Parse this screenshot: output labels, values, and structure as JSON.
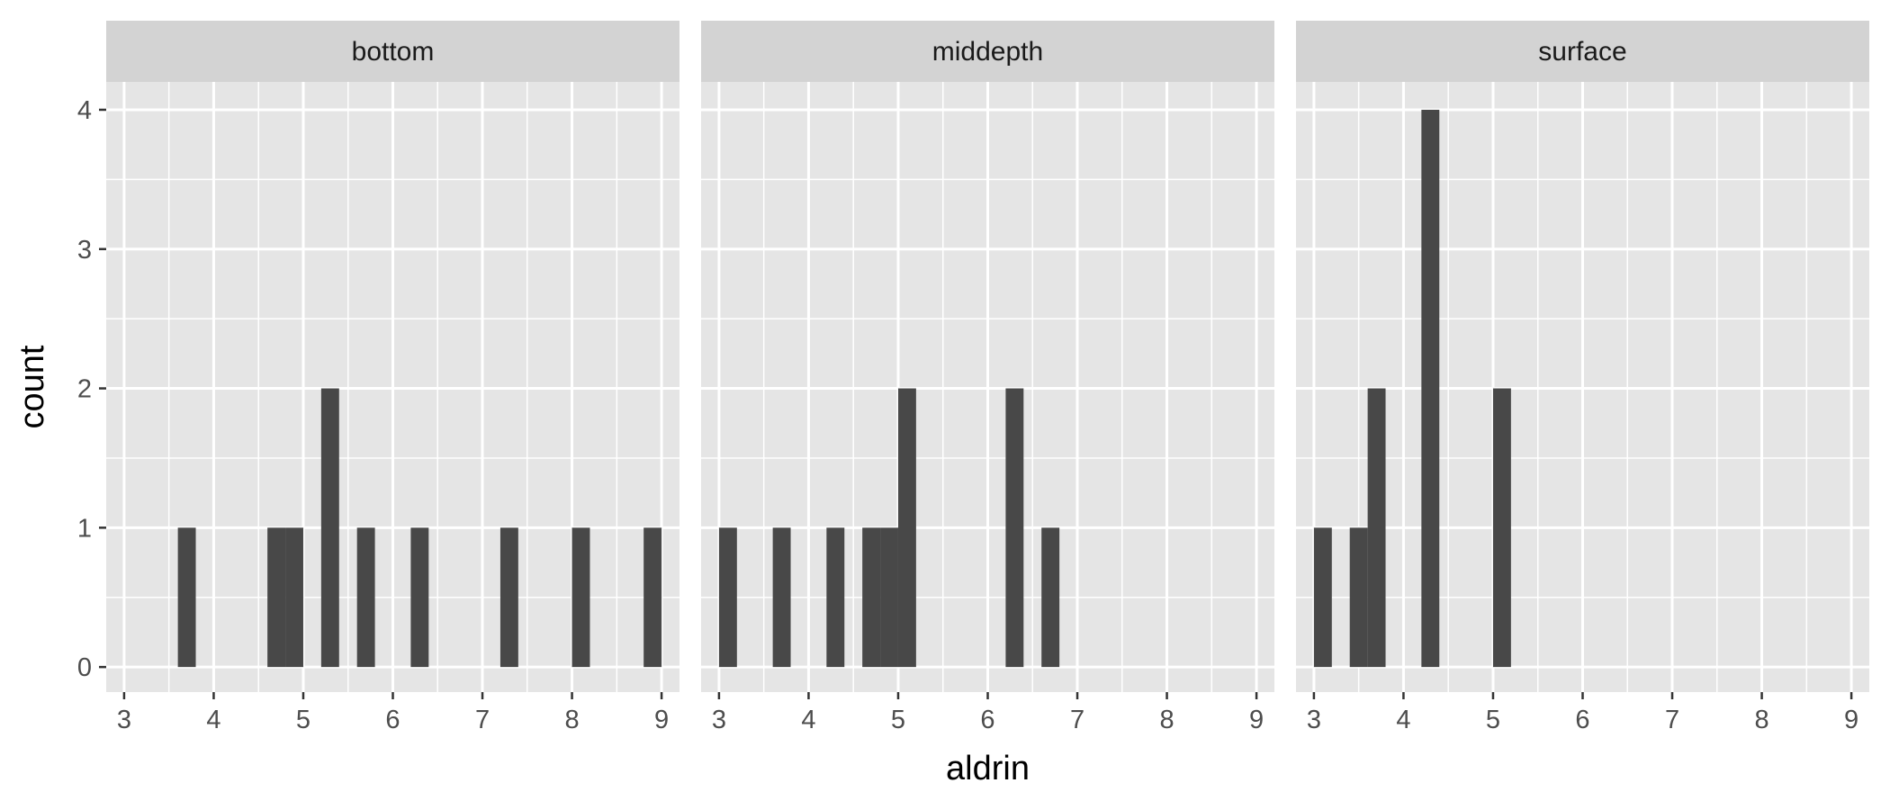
{
  "chart_data": {
    "type": "histogram",
    "facet_variable": "",
    "xlabel": "aldrin",
    "ylabel": "count",
    "title": "",
    "xlim": [
      2.8,
      9.2
    ],
    "ylim": [
      -0.18,
      4.2
    ],
    "x_ticks": [
      3,
      4,
      5,
      6,
      7,
      8,
      9
    ],
    "y_ticks": [
      0,
      1,
      2,
      3,
      4
    ],
    "bin_width": 0.2,
    "grid": true,
    "legend": "none",
    "colors": {
      "bar": "#484848",
      "panel_background": "#e5e5e5",
      "strip_background": "#d3d3d3",
      "grid": "#ffffff"
    },
    "panels": [
      {
        "name": "bottom",
        "bins": [
          {
            "x0": 3.6,
            "x1": 3.8,
            "count": 1
          },
          {
            "x0": 4.6,
            "x1": 4.8,
            "count": 1
          },
          {
            "x0": 4.8,
            "x1": 5.0,
            "count": 1
          },
          {
            "x0": 5.2,
            "x1": 5.4,
            "count": 2
          },
          {
            "x0": 5.6,
            "x1": 5.8,
            "count": 1
          },
          {
            "x0": 6.2,
            "x1": 6.4,
            "count": 1
          },
          {
            "x0": 7.2,
            "x1": 7.4,
            "count": 1
          },
          {
            "x0": 8.0,
            "x1": 8.2,
            "count": 1
          },
          {
            "x0": 8.8,
            "x1": 9.0,
            "count": 1
          }
        ]
      },
      {
        "name": "middepth",
        "bins": [
          {
            "x0": 3.0,
            "x1": 3.2,
            "count": 1
          },
          {
            "x0": 3.6,
            "x1": 3.8,
            "count": 1
          },
          {
            "x0": 4.2,
            "x1": 4.4,
            "count": 1
          },
          {
            "x0": 4.6,
            "x1": 4.8,
            "count": 1
          },
          {
            "x0": 4.8,
            "x1": 5.0,
            "count": 1
          },
          {
            "x0": 5.0,
            "x1": 5.2,
            "count": 2
          },
          {
            "x0": 6.2,
            "x1": 6.4,
            "count": 2
          },
          {
            "x0": 6.6,
            "x1": 6.8,
            "count": 1
          }
        ]
      },
      {
        "name": "surface",
        "bins": [
          {
            "x0": 3.0,
            "x1": 3.2,
            "count": 1
          },
          {
            "x0": 3.4,
            "x1": 3.6,
            "count": 1
          },
          {
            "x0": 3.6,
            "x1": 3.8,
            "count": 2
          },
          {
            "x0": 4.2,
            "x1": 4.4,
            "count": 4
          },
          {
            "x0": 5.0,
            "x1": 5.2,
            "count": 2
          }
        ]
      }
    ]
  }
}
